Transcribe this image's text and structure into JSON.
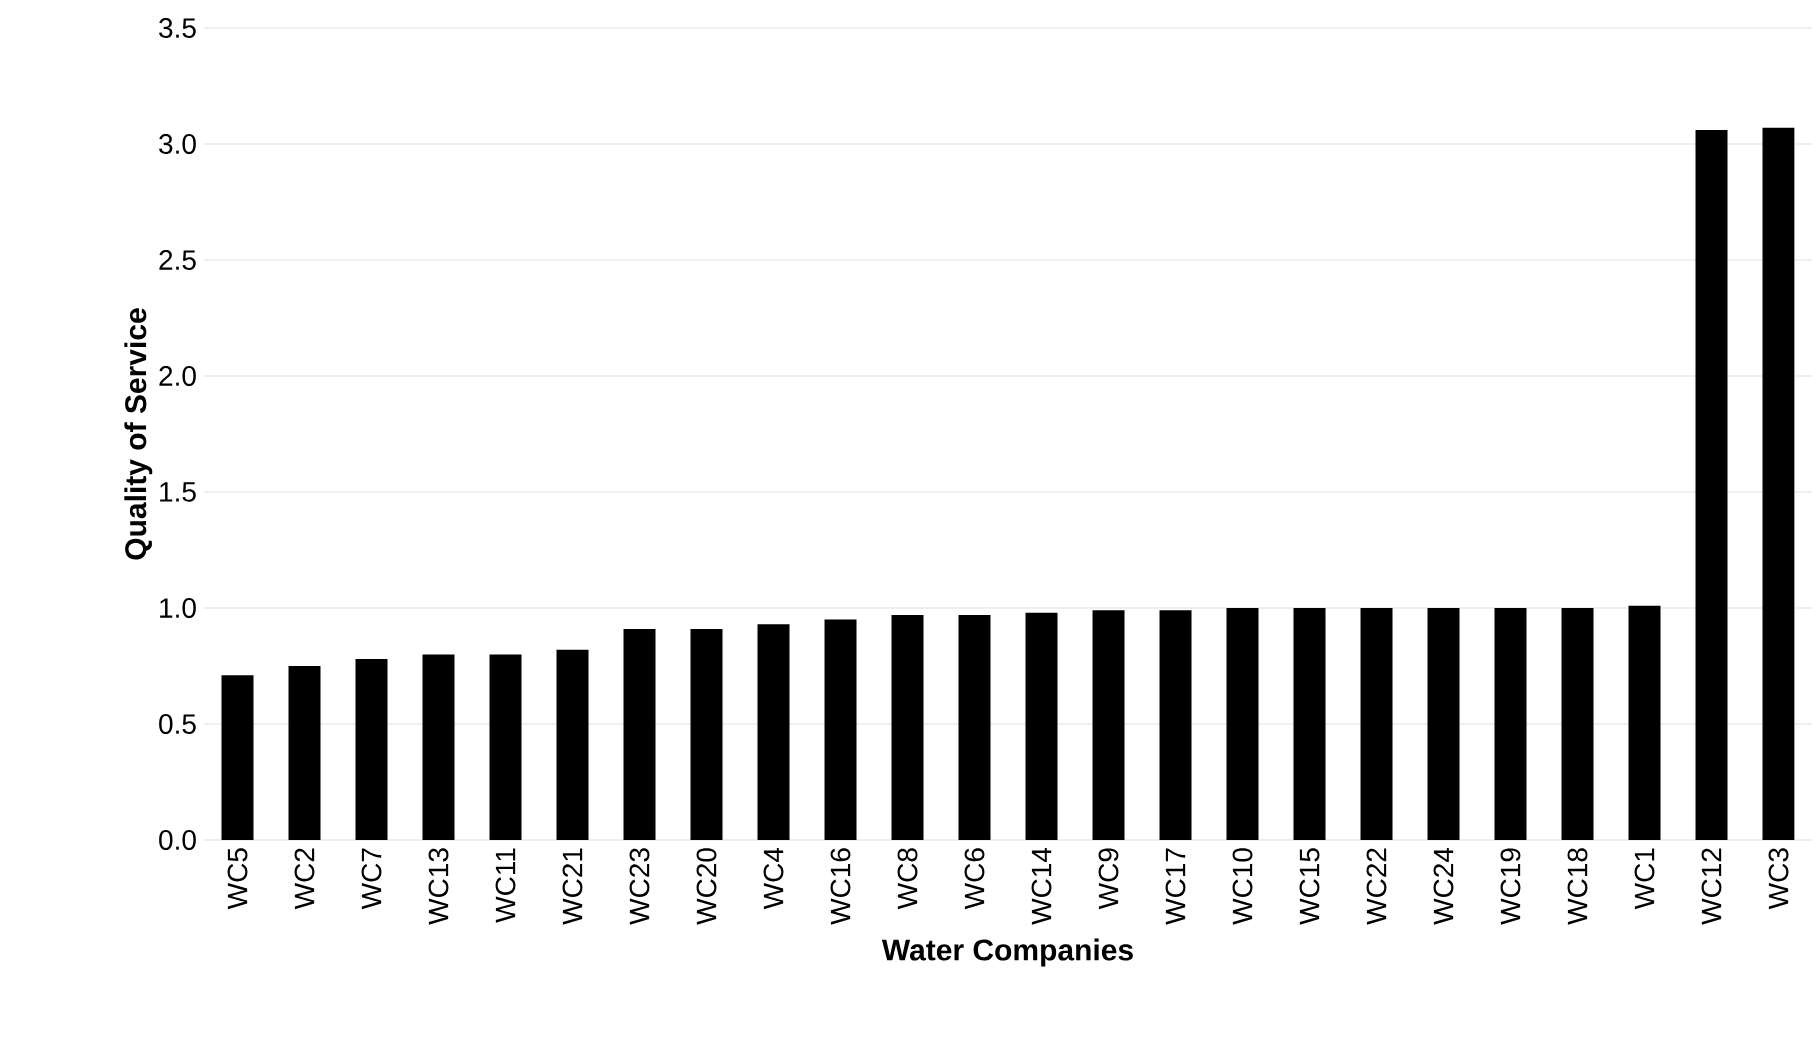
{
  "chart_data": {
    "type": "bar",
    "xlabel": "Water Companies",
    "ylabel": "Quality of Service",
    "categories": [
      "WC5",
      "WC2",
      "WC7",
      "WC13",
      "WC11",
      "WC21",
      "WC23",
      "WC20",
      "WC4",
      "WC16",
      "WC8",
      "WC6",
      "WC14",
      "WC9",
      "WC17",
      "WC10",
      "WC15",
      "WC22",
      "WC24",
      "WC19",
      "WC18",
      "WC1",
      "WC12",
      "WC3"
    ],
    "values": [
      0.71,
      0.75,
      0.78,
      0.8,
      0.8,
      0.82,
      0.91,
      0.91,
      0.93,
      0.95,
      0.97,
      0.97,
      0.98,
      0.99,
      0.99,
      1.0,
      1.0,
      1.0,
      1.0,
      1.0,
      1.0,
      1.01,
      3.06,
      3.07
    ],
    "color": "#000000",
    "ylim": [
      0,
      3.5
    ],
    "yticks": [
      {
        "value": 0,
        "label": "0.0"
      },
      {
        "value": 0.5,
        "label": "0.5"
      },
      {
        "value": 1,
        "label": "1.0"
      },
      {
        "value": 1.5,
        "label": "1.5"
      },
      {
        "value": 2,
        "label": "2.0"
      },
      {
        "value": 2.5,
        "label": "2.5"
      },
      {
        "value": 3,
        "label": "3.0"
      },
      {
        "value": 3.5,
        "label": "3.5"
      }
    ],
    "grid": "y"
  }
}
